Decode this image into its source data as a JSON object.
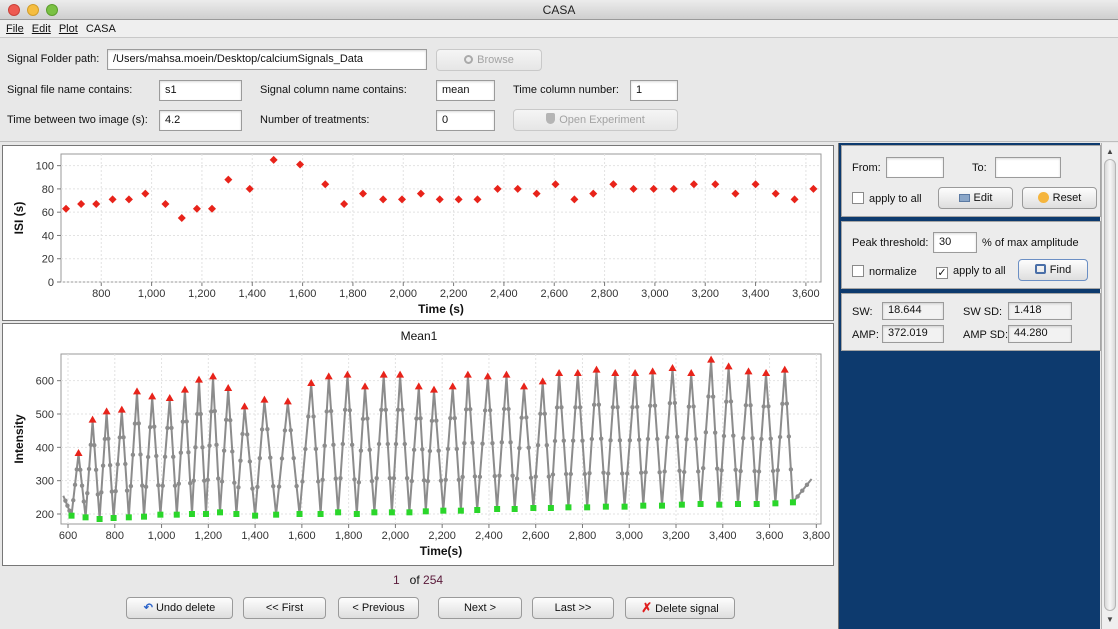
{
  "window": {
    "title": "CASA"
  },
  "menu": [
    "File",
    "Edit",
    "Plot",
    "CASA"
  ],
  "form": {
    "folder_label": "Signal Folder path:",
    "folder_value": "/Users/mahsa.moein/Desktop/calciumSignals_Data",
    "browse_label": "Browse",
    "file_contains_label": "Signal file name contains:",
    "file_contains_value": "s1",
    "column_contains_label": "Signal column name contains:",
    "column_contains_value": "mean",
    "time_col_label": "Time column number:",
    "time_col_value": "1",
    "time_between_label": "Time between two image (s):",
    "time_between_value": "4.2",
    "treatments_label": "Number of treatments:",
    "treatments_value": "0",
    "open_exp_label": "Open Experiment"
  },
  "colors": {
    "peak": "#e8231a",
    "trough": "#2ad62a",
    "line": "#8c8c8c",
    "panel_blue": "#0d3a6e"
  },
  "chart_data": [
    {
      "type": "scatter",
      "title": "",
      "xlabel": "Time (s)",
      "ylabel": "ISI (s)",
      "xlim": [
        640,
        3660
      ],
      "ylim": [
        0,
        110
      ],
      "xticks": [
        800,
        1000,
        1200,
        1400,
        1600,
        1800,
        2000,
        2200,
        2400,
        2600,
        2800,
        3000,
        3200,
        3400,
        3600
      ],
      "xtick_labels": [
        "800",
        "1,000",
        "1,200",
        "1,400",
        "1,600",
        "1,800",
        "2,000",
        "2,200",
        "2,400",
        "2,600",
        "2,800",
        "3,000",
        "3,200",
        "3,400",
        "3,600"
      ],
      "yticks": [
        0,
        20,
        40,
        60,
        80,
        100
      ],
      "ytick_labels": [
        "0",
        "20",
        "40",
        "60",
        "80",
        "100"
      ],
      "x": [
        660,
        720,
        780,
        845,
        910,
        975,
        1055,
        1120,
        1180,
        1240,
        1305,
        1390,
        1485,
        1590,
        1690,
        1765,
        1840,
        1920,
        1995,
        2070,
        2145,
        2220,
        2295,
        2375,
        2455,
        2530,
        2605,
        2680,
        2755,
        2835,
        2915,
        2995,
        3075,
        3155,
        3240,
        3320,
        3400,
        3480,
        3555,
        3630
      ],
      "y": [
        63,
        67,
        67,
        71,
        71,
        76,
        67,
        55,
        63,
        63,
        88,
        80,
        105,
        101,
        84,
        67,
        76,
        71,
        71,
        76,
        71,
        71,
        71,
        80,
        80,
        76,
        84,
        71,
        76,
        84,
        80,
        80,
        80,
        84,
        84,
        76,
        84,
        76,
        71,
        80
      ]
    },
    {
      "type": "line",
      "title": "Mean1",
      "xlabel": "Time(s)",
      "ylabel": "Intensity",
      "xlim": [
        570,
        3820
      ],
      "ylim": [
        170,
        680
      ],
      "xticks": [
        600,
        800,
        1000,
        1200,
        1400,
        1600,
        1800,
        2000,
        2200,
        2400,
        2600,
        2800,
        3000,
        3200,
        3400,
        3600,
        3800
      ],
      "xtick_labels": [
        "600",
        "800",
        "1,000",
        "1,200",
        "1,400",
        "1,600",
        "1,800",
        "2,000",
        "2,200",
        "2,400",
        "2,600",
        "2,800",
        "3,000",
        "3,200",
        "3,400",
        "3,600",
        "3,800"
      ],
      "yticks": [
        200,
        300,
        400,
        500,
        600
      ],
      "ytick_labels": [
        "200",
        "300",
        "400",
        "500",
        "600"
      ],
      "start": [
        580,
        255
      ],
      "end": [
        3780,
        305
      ],
      "peaks_x": [
        645,
        705,
        765,
        830,
        895,
        960,
        1035,
        1100,
        1160,
        1220,
        1285,
        1355,
        1440,
        1540,
        1640,
        1715,
        1795,
        1870,
        1950,
        2020,
        2100,
        2165,
        2245,
        2310,
        2395,
        2475,
        2550,
        2630,
        2700,
        2780,
        2860,
        2940,
        3025,
        3100,
        3185,
        3265,
        3350,
        3425,
        3510,
        3585,
        3665
      ],
      "peaks_y": [
        380,
        480,
        505,
        510,
        565,
        550,
        545,
        570,
        600,
        610,
        575,
        520,
        540,
        535,
        590,
        610,
        615,
        580,
        615,
        615,
        580,
        570,
        580,
        615,
        610,
        615,
        580,
        595,
        620,
        620,
        630,
        620,
        620,
        625,
        635,
        620,
        660,
        640,
        625,
        620,
        630
      ],
      "troughs_x": [
        615,
        675,
        735,
        795,
        860,
        925,
        995,
        1065,
        1130,
        1190,
        1250,
        1320,
        1400,
        1490,
        1590,
        1680,
        1755,
        1835,
        1910,
        1985,
        2060,
        2130,
        2205,
        2280,
        2350,
        2435,
        2510,
        2590,
        2665,
        2740,
        2820,
        2900,
        2980,
        3060,
        3140,
        3225,
        3305,
        3385,
        3465,
        3545,
        3625,
        3700
      ],
      "troughs_y": [
        195,
        190,
        185,
        188,
        190,
        192,
        198,
        198,
        200,
        200,
        205,
        200,
        195,
        198,
        200,
        200,
        205,
        200,
        205,
        205,
        205,
        208,
        210,
        210,
        212,
        215,
        215,
        218,
        218,
        220,
        220,
        222,
        222,
        225,
        225,
        228,
        230,
        228,
        230,
        230,
        232,
        235
      ]
    }
  ],
  "nav": {
    "page_current": "1",
    "page_of": "of",
    "page_total": "254",
    "undo_label": "Undo delete",
    "first_label": "<< First",
    "prev_label": "< Previous",
    "next_label": "Next >",
    "last_label": "Last >>",
    "delete_label": "Delete signal"
  },
  "right": {
    "from_label": "From:",
    "from_value": "",
    "to_label": "To:",
    "to_value": "",
    "apply_all_label": "apply to all",
    "edit_label": "Edit",
    "reset_label": "Reset",
    "peak_threshold_label": "Peak threshold:",
    "peak_threshold_value": "30",
    "peak_threshold_suffix": "% of max amplitude",
    "normalize_label": "normalize",
    "apply_all2_label": "apply to all",
    "apply_all2_checked": true,
    "find_label": "Find",
    "sw_label": "SW:",
    "sw_value": "18.644",
    "swsd_label": "SW SD:",
    "swsd_value": "1.418",
    "amp_label": "AMP:",
    "amp_value": "372.019",
    "ampsd_label": "AMP SD:",
    "ampsd_value": "44.280"
  }
}
